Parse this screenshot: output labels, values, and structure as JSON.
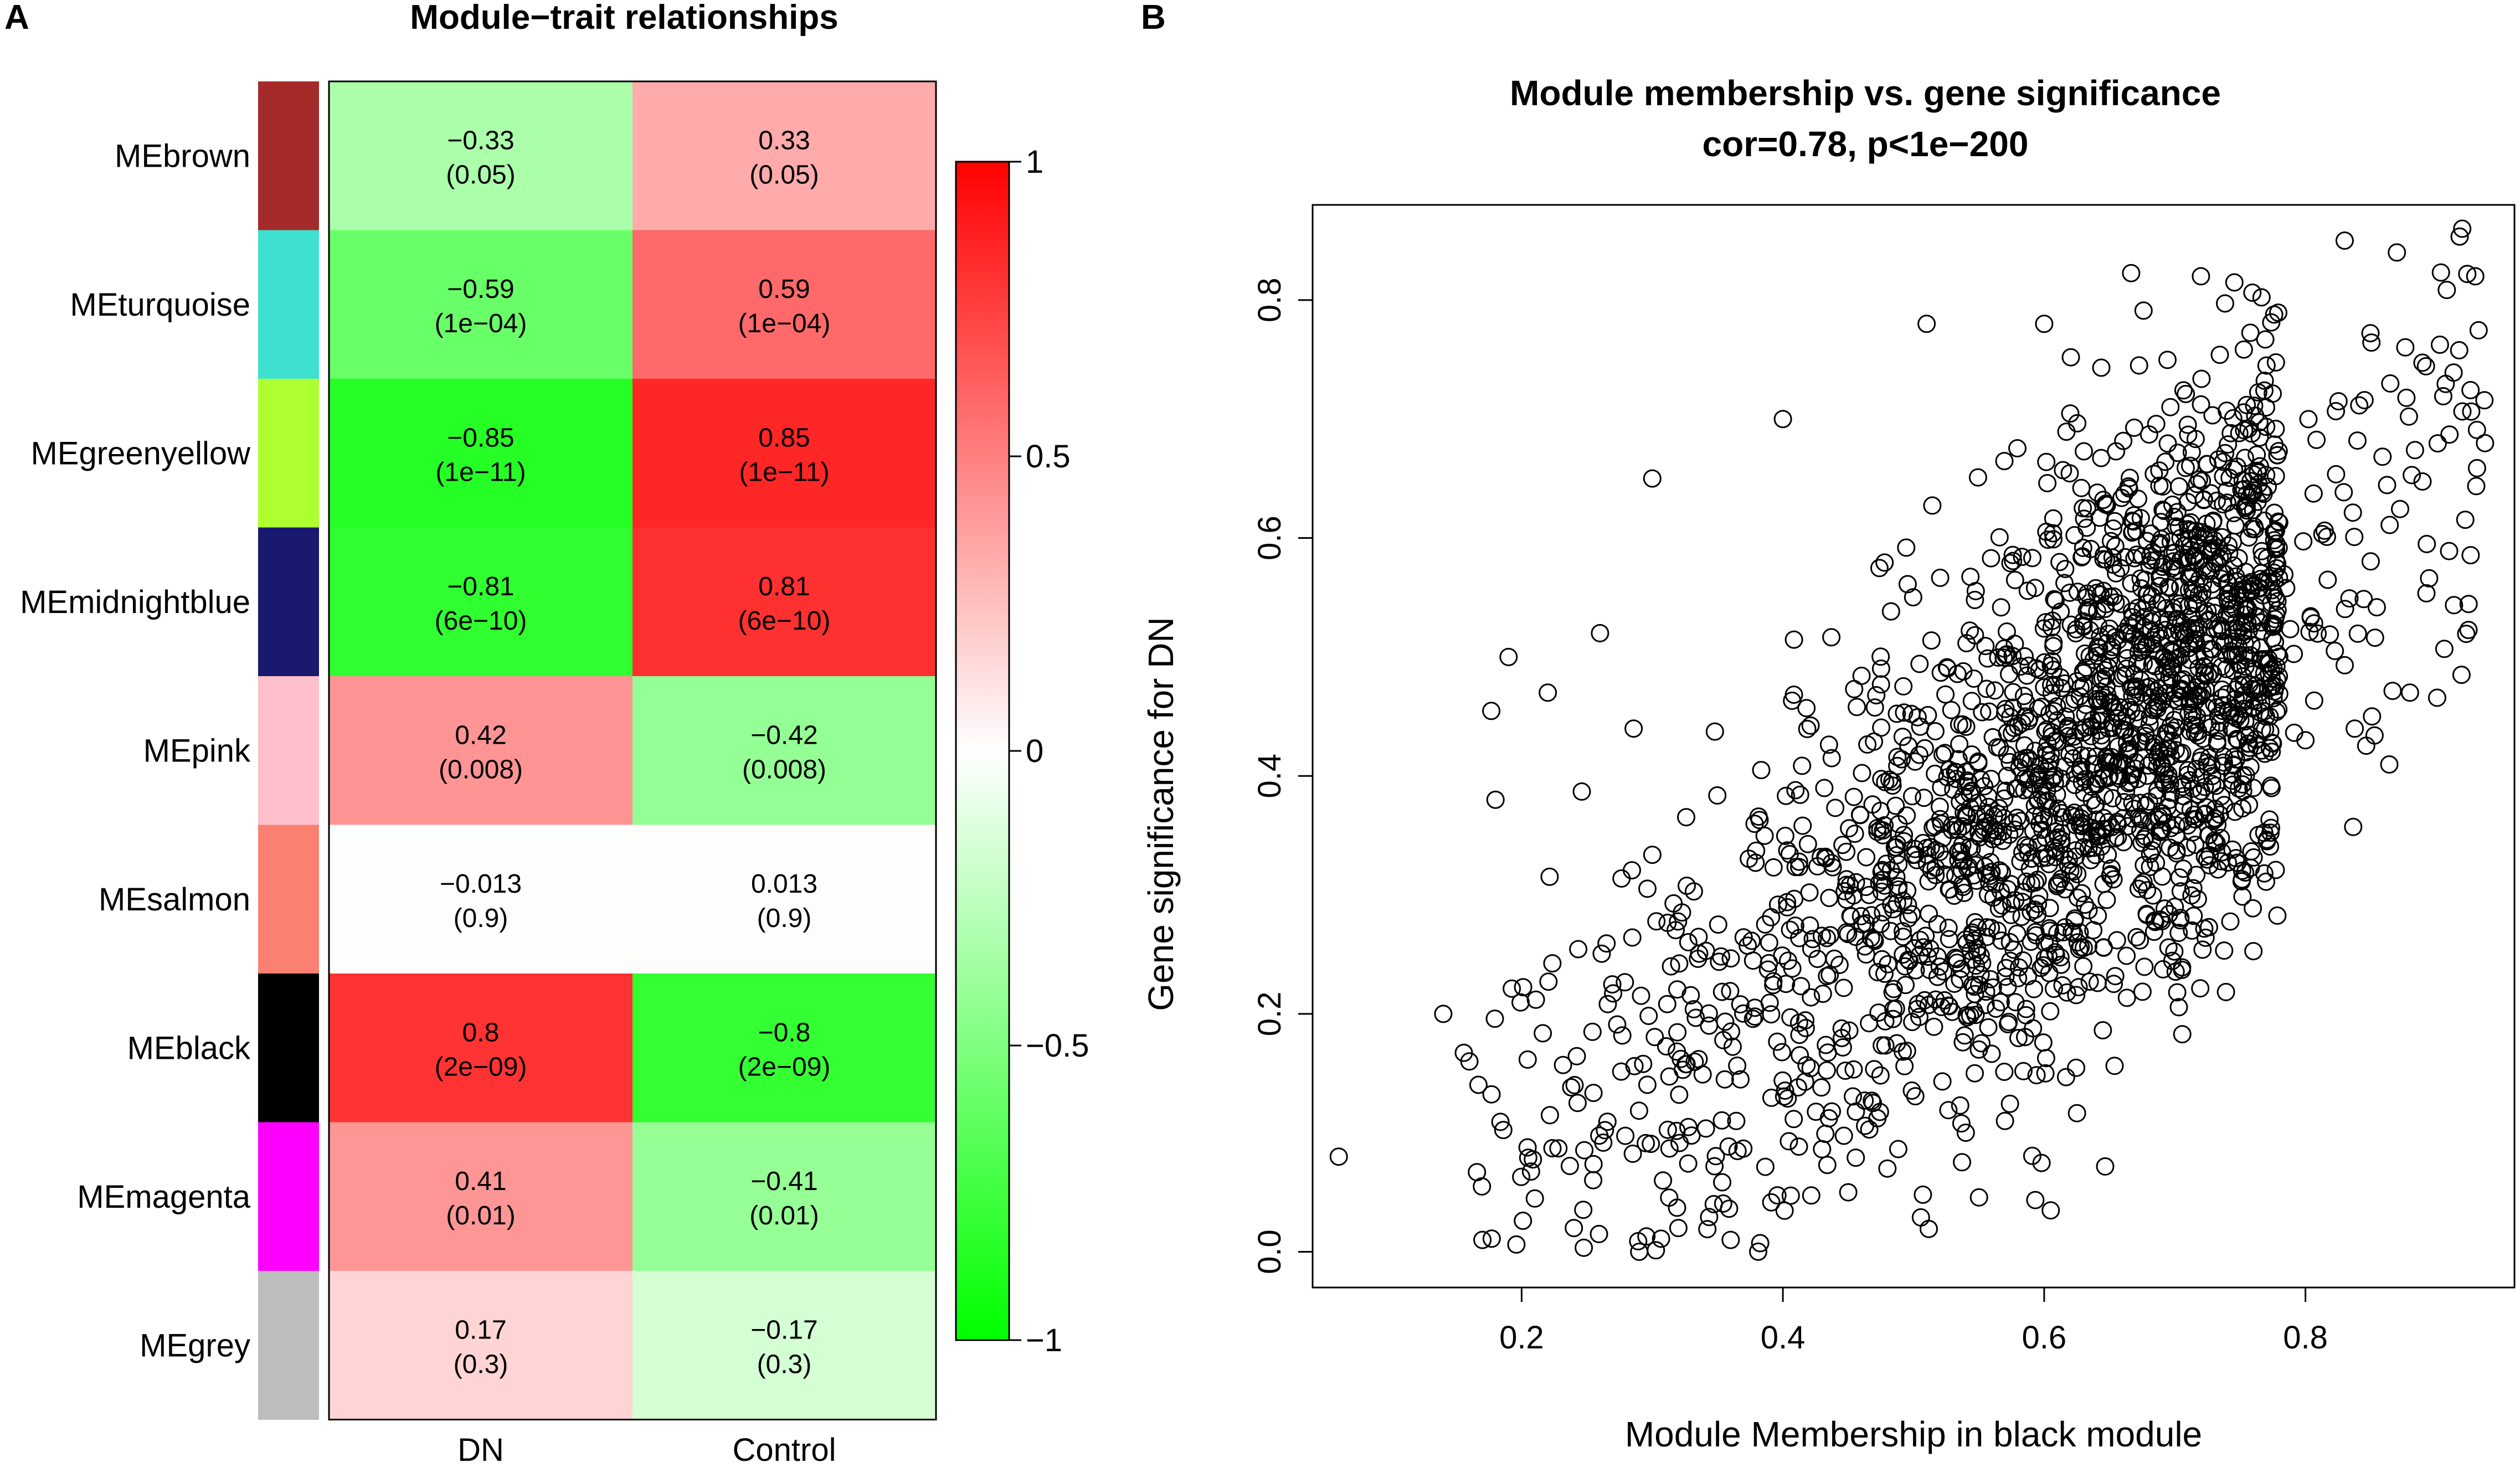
{
  "panels": {
    "a_label": "A",
    "b_label": "B"
  },
  "chart_data": [
    {
      "type": "heatmap",
      "title": "Module−trait relationships",
      "row_labels": [
        "MEbrown",
        "MEturquoise",
        "MEgreenyellow",
        "MEmidnightblue",
        "MEpink",
        "MEsalmon",
        "MEblack",
        "MEmagenta",
        "MEgrey"
      ],
      "module_colors": [
        "#a52a2a",
        "#40e0d0",
        "#adff2f",
        "#191970",
        "#ffc0cb",
        "#fa8072",
        "#000000",
        "#ff00ff",
        "#bebebe"
      ],
      "columns": [
        "DN",
        "Control"
      ],
      "correlations": [
        [
          -0.33,
          0.33
        ],
        [
          -0.59,
          0.59
        ],
        [
          -0.85,
          0.85
        ],
        [
          -0.81,
          0.81
        ],
        [
          0.42,
          -0.42
        ],
        [
          -0.013,
          0.013
        ],
        [
          0.8,
          -0.8
        ],
        [
          0.41,
          -0.41
        ],
        [
          0.17,
          -0.17
        ]
      ],
      "cell_text": [
        [
          "−0.33",
          "0.33"
        ],
        [
          "−0.59",
          "0.59"
        ],
        [
          "−0.85",
          "0.85"
        ],
        [
          "−0.81",
          "0.81"
        ],
        [
          "0.42",
          "−0.42"
        ],
        [
          "−0.013",
          "0.013"
        ],
        [
          "0.8",
          "−0.8"
        ],
        [
          "0.41",
          "−0.41"
        ],
        [
          "0.17",
          "−0.17"
        ]
      ],
      "pvalue_text": [
        [
          "(0.05)",
          "(0.05)"
        ],
        [
          "(1e−04)",
          "(1e−04)"
        ],
        [
          "(1e−11)",
          "(1e−11)"
        ],
        [
          "(6e−10)",
          "(6e−10)"
        ],
        [
          "(0.008)",
          "(0.008)"
        ],
        [
          "(0.9)",
          "(0.9)"
        ],
        [
          "(2e−09)",
          "(2e−09)"
        ],
        [
          "(0.01)",
          "(0.01)"
        ],
        [
          "(0.3)",
          "(0.3)"
        ]
      ],
      "colorbar": {
        "min": -1,
        "max": 1,
        "ticks": [
          1,
          0.5,
          0,
          -0.5,
          -1
        ],
        "tick_labels": [
          "1",
          "0.5",
          "0",
          "−0.5",
          "−1"
        ],
        "colors": {
          "low": "#00ff00",
          "mid": "#ffffff",
          "high": "#ff0000"
        }
      }
    },
    {
      "type": "scatter",
      "title": "Module membership vs. gene significance",
      "subtitle": "cor=0.78, p<1e−200",
      "xlabel": "Module Membership in black module",
      "ylabel": "Gene significance for  DN",
      "xlim": [
        0.04,
        0.96
      ],
      "ylim": [
        -0.03,
        0.88
      ],
      "xticks": [
        0.2,
        0.4,
        0.6,
        0.8
      ],
      "xtick_labels": [
        "0.2",
        "0.4",
        "0.6",
        "0.8"
      ],
      "yticks": [
        0.0,
        0.2,
        0.4,
        0.6,
        0.8
      ],
      "ytick_labels": [
        "0.0",
        "0.2",
        "0.4",
        "0.6",
        "0.8"
      ],
      "marker": "open-circle",
      "n_points": 2200,
      "correlation": 0.78,
      "x_range_of_points": [
        0.06,
        0.94
      ],
      "y_range_of_points": [
        0.0,
        0.86
      ],
      "sample_points": [
        [
          0.06,
          0.08
        ],
        [
          0.16,
          0.16
        ],
        [
          0.14,
          0.2
        ],
        [
          0.19,
          0.5
        ],
        [
          0.22,
          0.47
        ],
        [
          0.26,
          0.52
        ],
        [
          0.17,
          0.01
        ],
        [
          0.29,
          0.0
        ],
        [
          0.92,
          0.86
        ],
        [
          0.87,
          0.84
        ],
        [
          0.55,
          0.17
        ],
        [
          0.57,
          0.11
        ],
        [
          0.48,
          0.07
        ],
        [
          0.32,
          0.02
        ],
        [
          0.18,
          0.38
        ],
        [
          0.3,
          0.65
        ],
        [
          0.4,
          0.7
        ],
        [
          0.51,
          0.78
        ],
        [
          0.6,
          0.78
        ],
        [
          0.72,
          0.82
        ],
        [
          0.83,
          0.85
        ],
        [
          0.93,
          0.82
        ],
        [
          0.88,
          0.47
        ],
        [
          0.8,
          0.43
        ],
        [
          0.7,
          0.29
        ],
        [
          0.63,
          0.24
        ],
        [
          0.58,
          0.23
        ],
        [
          0.45,
          0.05
        ],
        [
          0.36,
          0.01
        ],
        [
          0.24,
          0.02
        ]
      ],
      "sample_seed": 20240517
    }
  ]
}
